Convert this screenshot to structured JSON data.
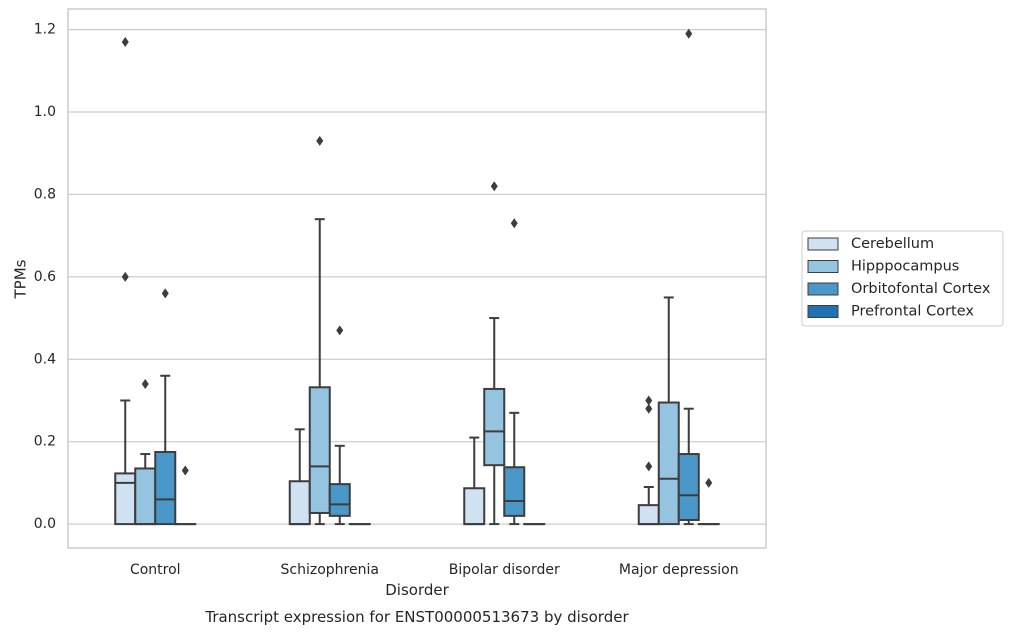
{
  "chart_data": {
    "type": "box",
    "title": "Transcript expression for ENST00000513673 by disorder",
    "xlabel": "Disorder",
    "ylabel": "TPMs",
    "ylim": [
      -0.058,
      1.25
    ],
    "yticks": [
      "0.0",
      "0.2",
      "0.4",
      "0.6",
      "0.8",
      "1.0",
      "1.2"
    ],
    "grid": true,
    "legend_position": "right",
    "categories": [
      "Control",
      "Schizophrenia",
      "Bipolar disorder",
      "Major depression"
    ],
    "series": [
      {
        "name": "Cerebellum",
        "color": "#d0e1f2",
        "boxes": [
          {
            "q1": 0,
            "median": 0.1,
            "q3": 0.123,
            "whisker_low": 0,
            "whisker_high": 0.3,
            "outliers": [
              1.17,
              0.6
            ]
          },
          {
            "q1": 0,
            "median": 0,
            "q3": 0.104,
            "whisker_low": 0,
            "whisker_high": 0.23,
            "outliers": []
          },
          {
            "q1": 0,
            "median": 0,
            "q3": 0.087,
            "whisker_low": 0,
            "whisker_high": 0.21,
            "outliers": []
          },
          {
            "q1": 0,
            "median": 0,
            "q3": 0.046,
            "whisker_low": 0,
            "whisker_high": 0.09,
            "outliers": [
              0.3,
              0.28,
              0.14
            ]
          }
        ]
      },
      {
        "name": "Hipppocampus",
        "color": "#94c4df",
        "boxes": [
          {
            "q1": 0,
            "median": 0,
            "q3": 0.135,
            "whisker_low": 0,
            "whisker_high": 0.17,
            "outliers": [
              0.34
            ]
          },
          {
            "q1": 0.027,
            "median": 0.14,
            "q3": 0.332,
            "whisker_low": 0,
            "whisker_high": 0.74,
            "outliers": [
              0.93
            ]
          },
          {
            "q1": 0.143,
            "median": 0.225,
            "q3": 0.328,
            "whisker_low": 0,
            "whisker_high": 0.5,
            "outliers": [
              0.82
            ]
          },
          {
            "q1": 0,
            "median": 0.11,
            "q3": 0.295,
            "whisker_low": 0,
            "whisker_high": 0.55,
            "outliers": []
          }
        ]
      },
      {
        "name": "Orbitofontal Cortex",
        "color": "#4a98c9",
        "boxes": [
          {
            "q1": 0,
            "median": 0.06,
            "q3": 0.175,
            "whisker_low": 0,
            "whisker_high": 0.36,
            "outliers": [
              0.56
            ]
          },
          {
            "q1": 0.02,
            "median": 0.048,
            "q3": 0.097,
            "whisker_low": 0,
            "whisker_high": 0.19,
            "outliers": [
              0.47
            ]
          },
          {
            "q1": 0.02,
            "median": 0.056,
            "q3": 0.138,
            "whisker_low": 0,
            "whisker_high": 0.27,
            "outliers": [
              0.73
            ]
          },
          {
            "q1": 0.01,
            "median": 0.07,
            "q3": 0.17,
            "whisker_low": 0,
            "whisker_high": 0.28,
            "outliers": [
              1.19
            ]
          }
        ]
      },
      {
        "name": "Prefrontal Cortex",
        "color": "#2171b5",
        "boxes": [
          {
            "q1": 0,
            "median": 0,
            "q3": 0,
            "whisker_low": 0,
            "whisker_high": 0,
            "outliers": [
              0.13
            ]
          },
          {
            "q1": 0,
            "median": 0,
            "q3": 0,
            "whisker_low": 0,
            "whisker_high": 0,
            "outliers": []
          },
          {
            "q1": 0,
            "median": 0,
            "q3": 0,
            "whisker_low": 0,
            "whisker_high": 0,
            "outliers": []
          },
          {
            "q1": 0,
            "median": 0,
            "q3": 0,
            "whisker_low": 0,
            "whisker_high": 0,
            "outliers": [
              0.1
            ]
          }
        ]
      }
    ]
  }
}
